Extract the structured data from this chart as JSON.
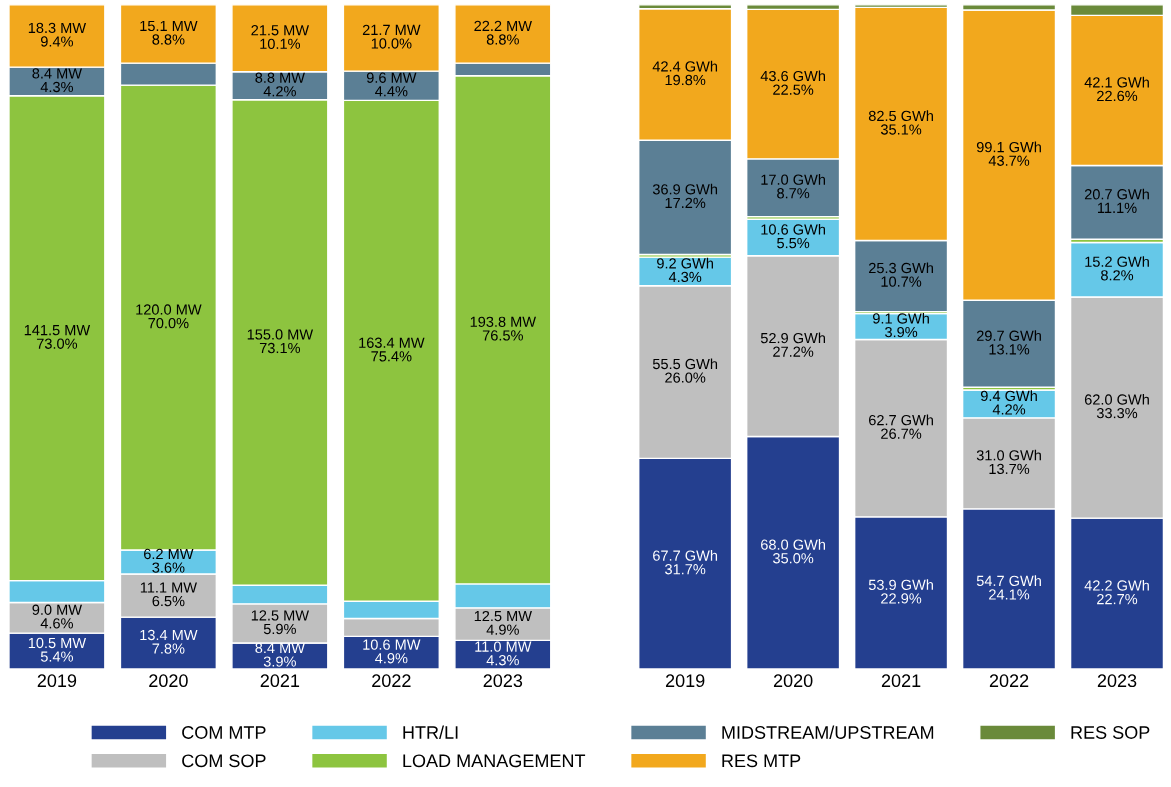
{
  "chart_data": [
    {
      "type": "bar",
      "stacked": true,
      "categories": [
        "2019",
        "2020",
        "2021",
        "2022",
        "2023"
      ],
      "ylim": [
        0,
        100
      ],
      "tick_labels": "x",
      "grid": false,
      "legend": "bottom",
      "series": [
        {
          "name": "COM MTP",
          "color": "#243f8f",
          "values": [
            5.4,
            7.8,
            3.9,
            4.9,
            4.3
          ],
          "value_labels": [
            "10.5 MW\n5.4%",
            "13.4 MW\n7.8%",
            "8.4 MW\n3.9%",
            "10.6 MW\n4.9%",
            "11.0 MW\n4.3%"
          ]
        },
        {
          "name": "COM SOP",
          "color": "#bfbfbf",
          "values": [
            4.6,
            6.5,
            5.9,
            2.7,
            4.9
          ],
          "value_labels": [
            "9.0 MW\n4.6%",
            "11.1 MW\n6.5%",
            "12.5 MW\n5.9%",
            null,
            "12.5 MW\n4.9%"
          ]
        },
        {
          "name": "HTR/LI",
          "color": "#65c8e8",
          "values": [
            3.3,
            3.6,
            2.8,
            2.6,
            3.6
          ],
          "value_labels": [
            null,
            "6.2 MW\n3.6%",
            null,
            null,
            null
          ]
        },
        {
          "name": "LOAD MANAGEMENT",
          "color": "#8dc43f",
          "values": [
            73.0,
            70.0,
            73.1,
            75.4,
            76.5
          ],
          "value_labels": [
            "141.5 MW\n73.0%",
            "120.0 MW\n70.0%",
            "155.0 MW\n73.1%",
            "163.4 MW\n75.4%",
            "193.8 MW\n76.5%"
          ]
        },
        {
          "name": "MIDSTREAM/UPSTREAM",
          "color": "#5b7f95",
          "values": [
            4.3,
            3.3,
            4.2,
            4.4,
            1.9
          ],
          "value_labels": [
            "8.4 MW\n4.3%",
            null,
            "8.8 MW\n4.2%",
            "9.6 MW\n4.4%",
            null
          ]
        },
        {
          "name": "RES MTP",
          "color": "#f2a81d",
          "values": [
            9.4,
            8.8,
            10.1,
            10.0,
            8.8
          ],
          "value_labels": [
            "18.3 MW\n9.4%",
            "15.1 MW\n8.8%",
            "21.5 MW\n10.1%",
            "21.7 MW\n10.0%",
            "22.2 MW\n8.8%"
          ]
        }
      ]
    },
    {
      "type": "bar",
      "stacked": true,
      "categories": [
        "2019",
        "2020",
        "2021",
        "2022",
        "2023"
      ],
      "ylim": [
        0,
        100
      ],
      "tick_labels": "x",
      "grid": false,
      "legend": "bottom",
      "series": [
        {
          "name": "COM MTP",
          "color": "#243f8f",
          "values": [
            31.7,
            35.0,
            22.9,
            24.1,
            22.7
          ],
          "value_labels": [
            "67.7 GWh\n31.7%",
            "68.0 GWh\n35.0%",
            "53.9 GWh\n22.9%",
            "54.7 GWh\n24.1%",
            "42.2 GWh\n22.7%"
          ]
        },
        {
          "name": "COM SOP",
          "color": "#bfbfbf",
          "values": [
            26.0,
            27.2,
            26.7,
            13.7,
            33.3
          ],
          "value_labels": [
            "55.5 GWh\n26.0%",
            "52.9 GWh\n27.2%",
            "62.7 GWh\n26.7%",
            "31.0 GWh\n13.7%",
            "62.0 GWh\n33.3%"
          ]
        },
        {
          "name": "HTR/LI",
          "color": "#65c8e8",
          "values": [
            4.3,
            5.5,
            3.9,
            4.2,
            8.2
          ],
          "value_labels": [
            "9.2 GWh\n4.3%",
            "10.6 GWh\n5.5%",
            "9.1 GWh\n3.9%",
            "9.4 GWh\n4.2%",
            "15.2 GWh\n8.2%"
          ]
        },
        {
          "name": "LOAD MANAGEMENT",
          "color": "#8dc43f",
          "values": [
            0.4,
            0.4,
            0.3,
            0.4,
            0.5
          ],
          "value_labels": [
            null,
            null,
            null,
            null,
            null
          ]
        },
        {
          "name": "MIDSTREAM/UPSTREAM",
          "color": "#5b7f95",
          "values": [
            17.2,
            8.7,
            10.7,
            13.1,
            11.1
          ],
          "value_labels": [
            "36.9 GWh\n17.2%",
            "17.0 GWh\n8.7%",
            "25.3 GWh\n10.7%",
            "29.7 GWh\n13.1%",
            "20.7 GWh\n11.1%"
          ]
        },
        {
          "name": "RES MTP",
          "color": "#f2a81d",
          "values": [
            19.8,
            22.5,
            35.1,
            43.7,
            22.6
          ],
          "value_labels": [
            "42.4 GWh\n19.8%",
            "43.6 GWh\n22.5%",
            "82.5 GWh\n35.1%",
            "99.1 GWh\n43.7%",
            "42.1 GWh\n22.6%"
          ]
        },
        {
          "name": "RES SOP",
          "color": "#6a8a3a",
          "values": [
            0.6,
            0.7,
            0.4,
            0.8,
            1.6
          ],
          "value_labels": [
            null,
            null,
            null,
            null,
            null
          ]
        }
      ]
    }
  ]
}
